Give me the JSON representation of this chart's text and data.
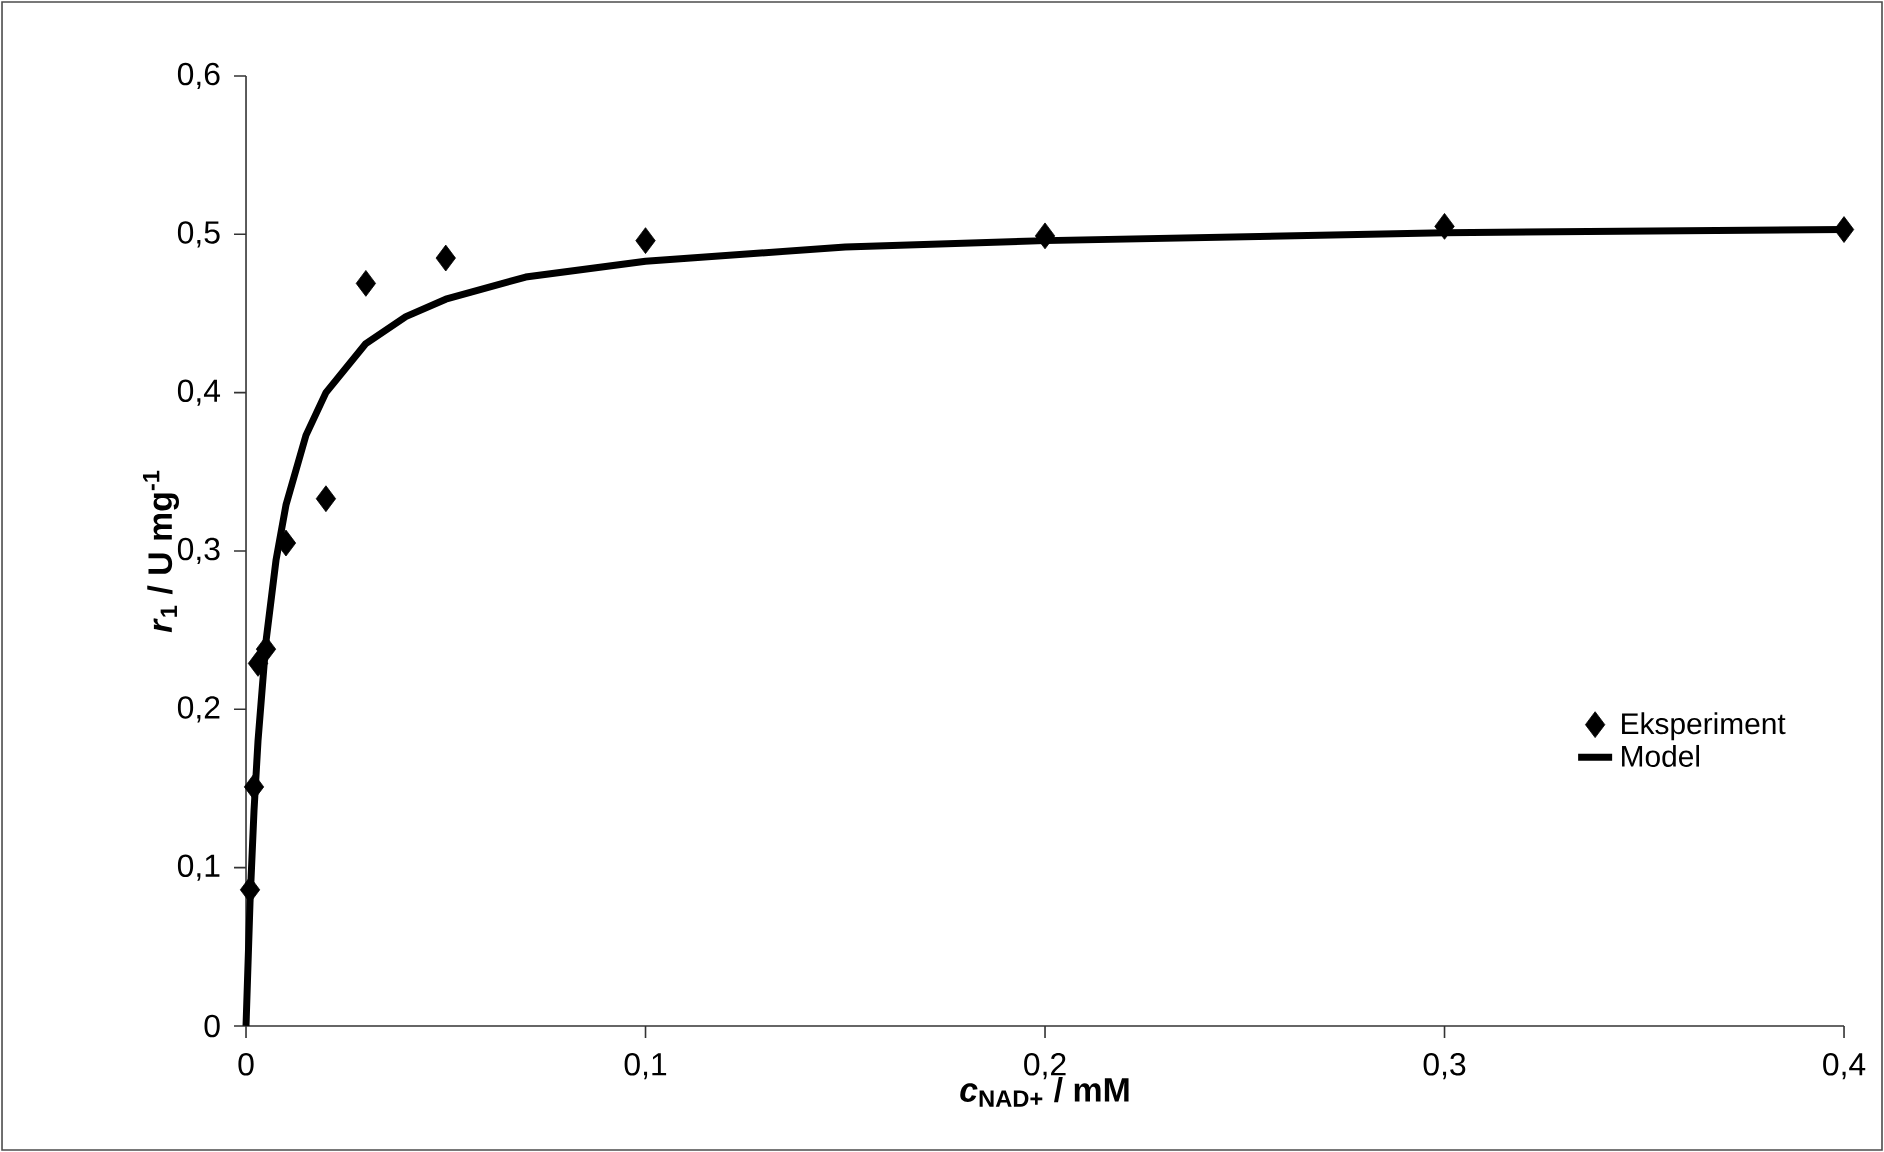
{
  "chart_data": {
    "type": "scatter",
    "xlabel": "*c*$_{NAD+}$ / mM",
    "ylabel": "*r*$_{1}$ / U mg$^{-1}$",
    "xlim": [
      0,
      0.4
    ],
    "ylim": [
      0,
      0.6
    ],
    "xticks": [
      0,
      {
        "value": 0.1,
        "label": "0,1"
      },
      {
        "value": 0.2,
        "label": "0,2"
      },
      {
        "value": 0.3,
        "label": "0,3"
      },
      {
        "value": 0.4,
        "label": "0,4"
      }
    ],
    "yticks": [
      0,
      {
        "value": 0.1,
        "label": "0,1"
      },
      {
        "value": 0.2,
        "label": "0,2"
      },
      {
        "value": 0.3,
        "label": "0,3"
      },
      {
        "value": 0.4,
        "label": "0,4"
      },
      {
        "value": 0.5,
        "label": "0,5"
      },
      {
        "value": 0.6,
        "label": "0,6"
      }
    ],
    "grid": false,
    "legend": "right",
    "series": [
      {
        "name": "Eksperiment",
        "marker": "diamond",
        "color": "#000000",
        "x": [
          0.001,
          0.002,
          0.003,
          0.005,
          0.01,
          0.02,
          0.03,
          0.05,
          0.1,
          0.2,
          0.3,
          0.4
        ],
        "values": [
          0.086,
          0.151,
          0.229,
          0.238,
          0.305,
          0.333,
          0.469,
          0.485,
          0.496,
          0.499,
          0.505,
          0.503
        ]
      },
      {
        "name": "Model",
        "type": "line",
        "marker": "none",
        "line_style": "solid",
        "color": "#000000",
        "x": [
          0,
          0.001,
          0.002,
          0.003,
          0.005,
          0.0075,
          0.01,
          0.015,
          0.02,
          0.03,
          0.04,
          0.05,
          0.07,
          0.1,
          0.15,
          0.2,
          0.3,
          0.4
        ],
        "values": [
          0,
          0.078,
          0.136,
          0.18,
          0.243,
          0.294,
          0.329,
          0.373,
          0.4,
          0.431,
          0.448,
          0.459,
          0.473,
          0.483,
          0.492,
          0.496,
          0.501,
          0.503
        ]
      }
    ]
  }
}
